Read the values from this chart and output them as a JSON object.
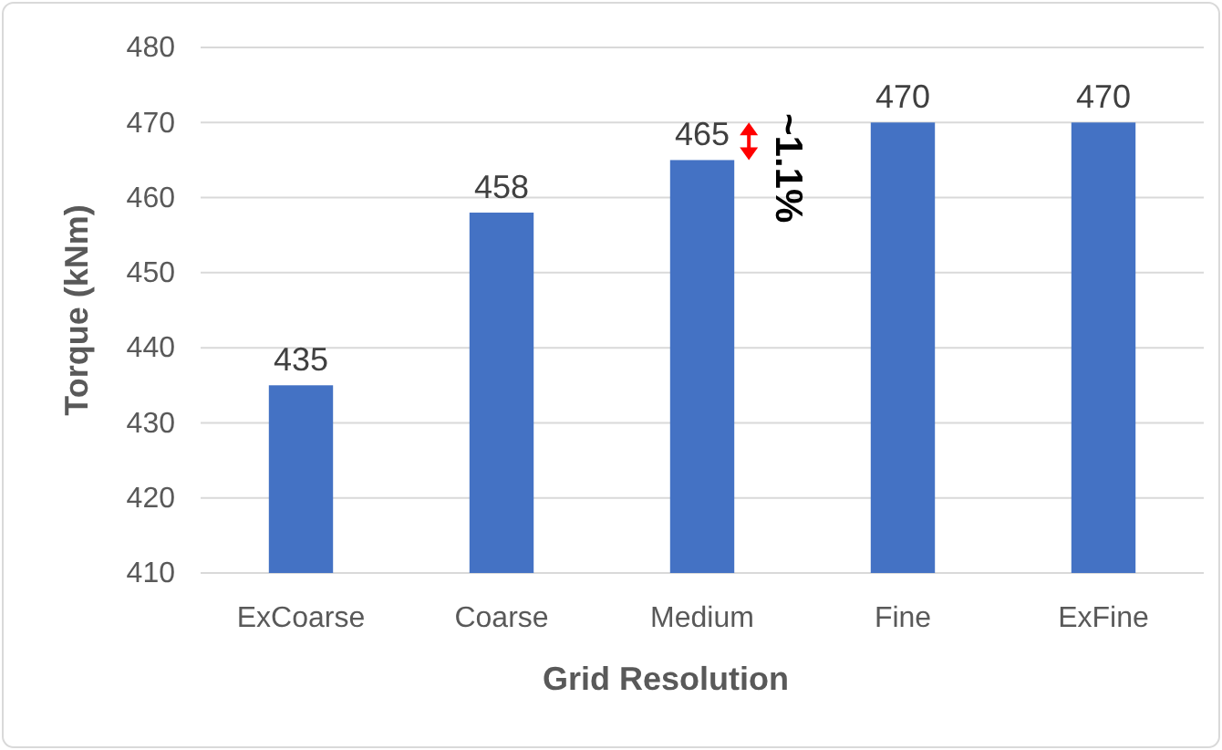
{
  "chart_data": {
    "type": "bar",
    "xlabel": "Grid Resolution",
    "ylabel": "Torque (kNm)",
    "categories": [
      "ExCoarse",
      "Coarse",
      "Medium",
      "Fine",
      "ExFine"
    ],
    "values": [
      435,
      458,
      465,
      470,
      470
    ],
    "color": "#4472c4",
    "ylim": [
      410,
      480
    ],
    "yticks": [
      410,
      420,
      430,
      440,
      450,
      460,
      470,
      480
    ],
    "grid": "y",
    "data_labels": true,
    "annotations": [
      "~1.1%"
    ]
  }
}
